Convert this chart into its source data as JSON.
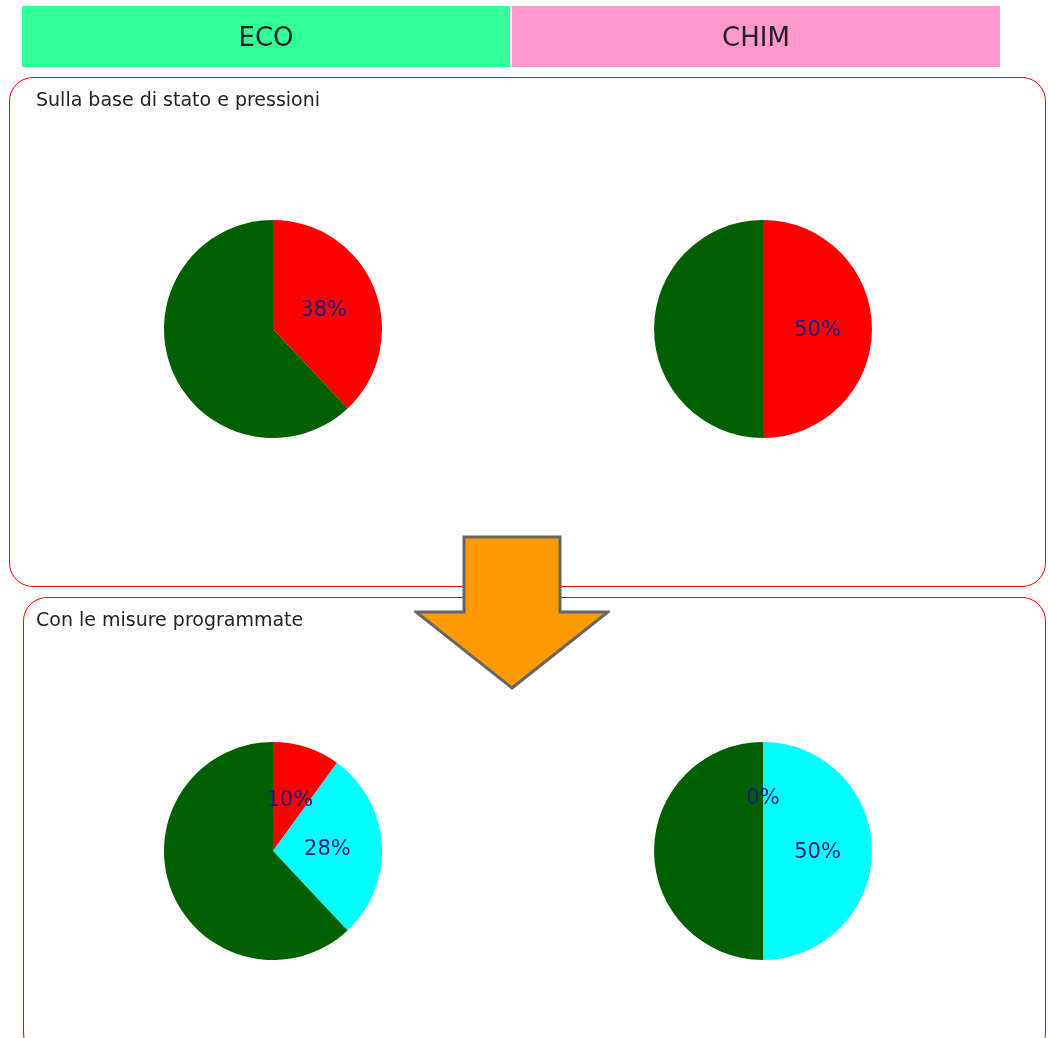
{
  "chart_data": [
    {
      "type": "pie",
      "title": "Sulla base di stato e pressioni",
      "annotations": [
        "ECO"
      ],
      "categories": [
        null,
        null
      ],
      "values": [
        38,
        62
      ],
      "colors": [
        "#ff0000",
        "#006000"
      ],
      "value_labels": [
        "38%",
        null
      ]
    },
    {
      "type": "pie",
      "annotations": [
        "CHIM"
      ],
      "categories": [
        null,
        null
      ],
      "values": [
        50,
        50
      ],
      "colors": [
        "#ff0000",
        "#006000"
      ],
      "value_labels": [
        "50%",
        null
      ]
    },
    {
      "type": "pie",
      "title": "Con le misure programmate",
      "categories": [
        null,
        null,
        null
      ],
      "values": [
        10,
        28,
        62
      ],
      "colors": [
        "#ff0000",
        "#00ffff",
        "#006000"
      ],
      "value_labels": [
        "10%",
        "28%",
        null
      ]
    },
    {
      "type": "pie",
      "categories": [
        null,
        null,
        null
      ],
      "values": [
        0,
        50,
        50
      ],
      "colors": [
        "#ff0000",
        "#00ffff",
        "#006000"
      ],
      "value_labels": [
        "0%",
        "50%",
        null
      ]
    }
  ]
}
